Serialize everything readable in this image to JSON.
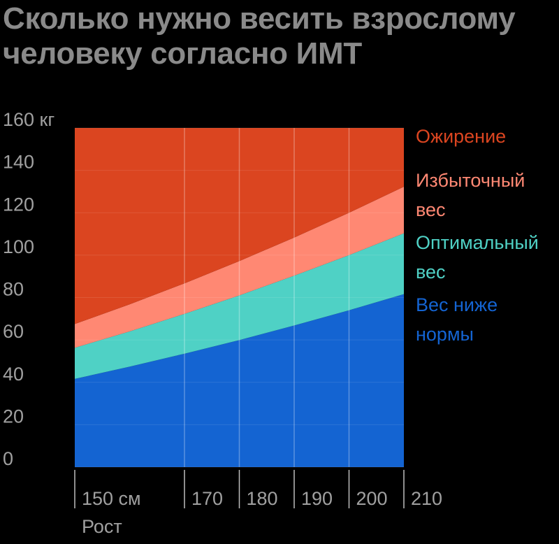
{
  "title_lines": [
    "Сколько нужно весить взрослому",
    "человеку согласно ИМТ"
  ],
  "chart_data": {
    "type": "area",
    "title": "Сколько нужно весить взрослому человеку согласно ИМТ",
    "xlabel": "Рост",
    "ylabel": "",
    "x": [
      150,
      160,
      170,
      180,
      190,
      200,
      210
    ],
    "x_tick_values": [
      150,
      170,
      180,
      190,
      200,
      210
    ],
    "x_tick_labels": [
      "150 см",
      "170",
      "180",
      "190",
      "200",
      "210"
    ],
    "y_tick_values": [
      0,
      20,
      40,
      60,
      80,
      100,
      120,
      140,
      160
    ],
    "y_tick_labels": [
      "0",
      "20",
      "40",
      "60",
      "80",
      "100",
      "120",
      "140",
      "160 кг"
    ],
    "xlim": [
      150,
      210
    ],
    "ylim": [
      0,
      160
    ],
    "grid": true,
    "legend_position": "right",
    "series": [
      {
        "name": "Вес ниже нормы",
        "color": "#1464d2",
        "values": [
          41.6,
          47.4,
          53.5,
          59.9,
          66.8,
          74.0,
          81.6
        ]
      },
      {
        "name": "Оптимальный вес",
        "color": "#4fd1c5",
        "values": [
          56.3,
          64.0,
          72.3,
          81.0,
          90.3,
          100.0,
          110.3
        ]
      },
      {
        "name": "Избыточный вес",
        "color": "#ff8873",
        "values": [
          67.5,
          76.8,
          86.7,
          97.2,
          108.3,
          120.0,
          132.3
        ]
      },
      {
        "name": "Ожирение",
        "color": "#db4520",
        "values": [
          160,
          160,
          160,
          160,
          160,
          160,
          160
        ]
      }
    ],
    "legend": [
      {
        "lines": [
          "Ожирение"
        ],
        "color": "#db4520"
      },
      {
        "lines": [
          "Избыточный",
          "вес"
        ],
        "color": "#ff8873"
      },
      {
        "lines": [
          "Оптимальный",
          "вес"
        ],
        "color": "#4fd1c5"
      },
      {
        "lines": [
          "Вес ниже",
          "нормы"
        ],
        "color": "#1464d2"
      }
    ]
  }
}
